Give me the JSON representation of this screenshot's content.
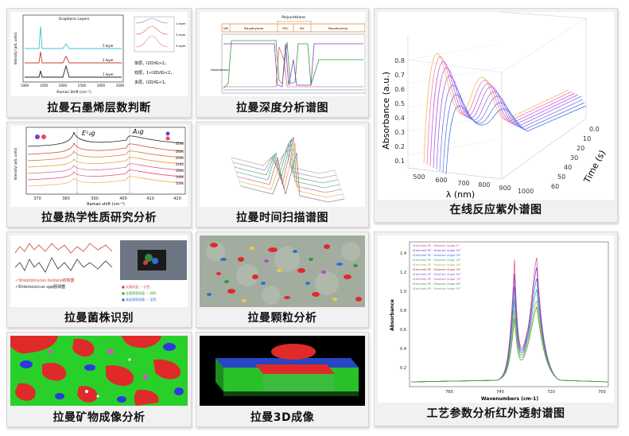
{
  "captions": {
    "p1": "拉曼石墨烯层数判断",
    "p2": "拉曼深度分析谱图",
    "p3": "在线反应紫外谱图",
    "p4": "拉曼热学性质研究分析",
    "p5": "拉曼时间扫描谱图",
    "p6": "拉曼菌株识别",
    "p7": "拉曼颗粒分析",
    "p8": "工艺参数分析红外透射谱图",
    "p9": "拉曼矿物成像分析",
    "p10": "拉曼3D成像"
  },
  "graphene": {
    "title": "Graphene Layers",
    "ylabel": "Intensity (arb. units)",
    "xlabel": "Raman Shift (cm⁻¹)",
    "xticks": [
      "1000",
      "1500",
      "2000",
      "2500",
      "3000",
      "3500"
    ],
    "series_labels": [
      "5 layer",
      "2 layer",
      "1 layer"
    ],
    "inset_labels": [
      "1 layer",
      "2 layer",
      "3 layer"
    ],
    "rules": [
      "单层，I2D/IG>2，",
      "双层，1<I2D/IG<2，",
      "多层，I2D/IG<1。"
    ],
    "colors": [
      "#3ec6d6",
      "#d23a3a",
      "#222222"
    ]
  },
  "depth": {
    "top_label": "Polyurethane",
    "segments": [
      "DB",
      "Polyethylene",
      "PVC",
      "NY",
      "Polyethylene"
    ],
    "ylabel": "Absorbance"
  },
  "uv": {
    "ylabel": "Absorbance (a.u.)",
    "xlabel": "λ (nm)",
    "tlabel": "Time (s)",
    "yticks": [
      "0.1",
      "0.2",
      "0.3",
      "0.4",
      "0.5",
      "0.6",
      "0.7",
      "0.8"
    ],
    "xticks": [
      "500",
      "600",
      "700",
      "800",
      "900",
      "1000"
    ],
    "tticks": [
      "0.0",
      "10",
      "20",
      "30",
      "40",
      "50",
      "60"
    ]
  },
  "thermal": {
    "peak1": "E¹₂g",
    "peak2": "A₁g",
    "temps": [
      "320K",
      "280K",
      "260K",
      "240K",
      "180K",
      "140K",
      "100K"
    ],
    "xticks": [
      "370",
      "380",
      "390",
      "400",
      "410",
      "420"
    ],
    "xlabel": "Raman shift (cm⁻¹)",
    "ylabel": "Intensity (arb. units)"
  },
  "strain": {
    "species": [
      "✓Streptomyces lividans链霉菌",
      "✓Enterococcus spp肠球菌"
    ],
    "legend": [
      "■ 大肠杆菌 — 红色",
      "■ 金黄葡萄球菌 — 绿色",
      "■ 表皮葡萄球菌 — 蓝色"
    ]
  },
  "ir": {
    "legend": [
      "Stretched PE · Polarizer Angle 0°",
      "Stretched PE · Polarizer Angle 10°",
      "Stretched PE · Polarizer Angle 20°",
      "Stretched PE · Polarizer Angle 30°",
      "Stretched PE · Polarizer Angle 40°",
      "Stretched PE · Polarizer Angle 50°",
      "Stretched PE · Polarizer Angle 60°",
      "Stretched PE · Polarizer Angle 70°",
      "Stretched PE · Polarizer Angle 80°",
      "Stretched PE · Polarizer Angle 90°"
    ],
    "ylabel": "Absorbance",
    "xlabel": "Wavenumbers (cm-1)",
    "yticks": [
      "0.2",
      "0.4",
      "0.6",
      "0.8",
      "1.0",
      "1.2",
      "1.4"
    ],
    "xticks": [
      "760",
      "740",
      "720",
      "700"
    ],
    "colors": [
      "#e0457a",
      "#7a3ad0",
      "#2f6fd6",
      "#2aa6a0",
      "#c9a531",
      "#9e3b3b",
      "#6b6bd8",
      "#b04cc4",
      "#3a9c3a",
      "#8a8a8a"
    ]
  }
}
